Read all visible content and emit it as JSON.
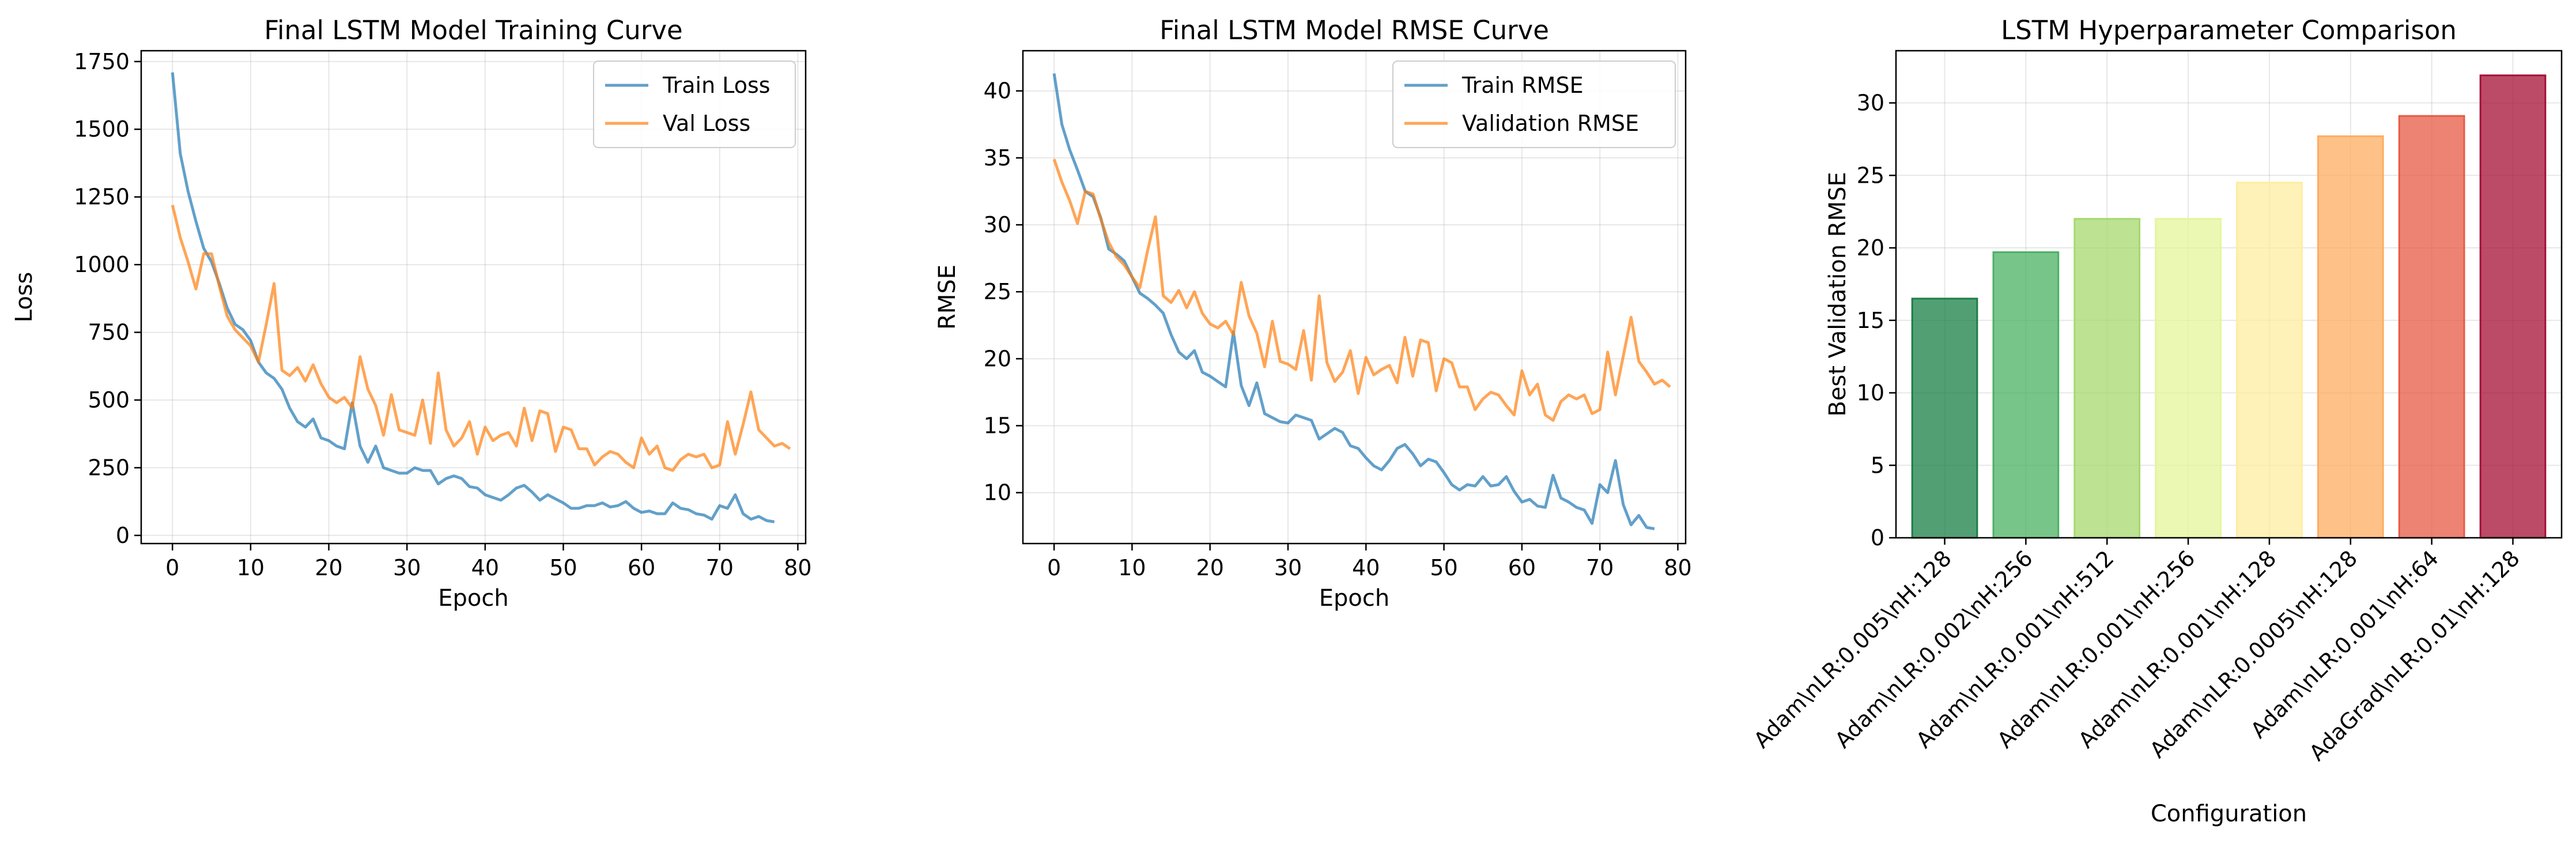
{
  "chart_data": [
    {
      "type": "line",
      "title": "Final LSTM Model Training Curve",
      "xlabel": "Epoch",
      "ylabel": "Loss",
      "xlim": [
        -4,
        81
      ],
      "ylim": [
        -30,
        1790
      ],
      "xticks": [
        0,
        10,
        20,
        30,
        40,
        50,
        60,
        70,
        80
      ],
      "yticks": [
        0,
        250,
        500,
        750,
        1000,
        1250,
        1500,
        1750
      ],
      "ytick_labels": [
        "0",
        "250",
        "500",
        "750",
        "1000",
        "1250",
        "1500",
        "1750"
      ],
      "grid": true,
      "legend": "top-right",
      "series": [
        {
          "name": "Train Loss",
          "color": "#1f77b4",
          "values": [
            1710,
            1410,
            1270,
            1160,
            1060,
            1010,
            930,
            840,
            780,
            760,
            720,
            640,
            600,
            580,
            540,
            470,
            420,
            400,
            430,
            360,
            350,
            330,
            320,
            490,
            330,
            270,
            330,
            250,
            240,
            230,
            230,
            250,
            240,
            240,
            190,
            210,
            220,
            210,
            180,
            175,
            150,
            140,
            130,
            150,
            175,
            185,
            160,
            130,
            150,
            135,
            120,
            100,
            100,
            110,
            110,
            120,
            105,
            110,
            125,
            100,
            85,
            90,
            80,
            80,
            120,
            100,
            95,
            80,
            75,
            60,
            110,
            100,
            150,
            80,
            60,
            70,
            55,
            50
          ]
        },
        {
          "name": "Val Loss",
          "color": "#ff7f0e",
          "values": [
            1220,
            1100,
            1010,
            910,
            1040,
            1040,
            920,
            810,
            760,
            730,
            700,
            640,
            780,
            930,
            610,
            590,
            620,
            570,
            630,
            560,
            510,
            490,
            510,
            470,
            660,
            540,
            480,
            370,
            520,
            390,
            380,
            370,
            500,
            340,
            600,
            390,
            330,
            360,
            420,
            300,
            400,
            350,
            370,
            380,
            330,
            470,
            350,
            460,
            450,
            310,
            400,
            390,
            320,
            320,
            260,
            290,
            310,
            300,
            270,
            250,
            360,
            300,
            330,
            250,
            240,
            280,
            300,
            290,
            300,
            250,
            260,
            420,
            300,
            410,
            530,
            390,
            360,
            330,
            340,
            320
          ]
        }
      ]
    },
    {
      "type": "line",
      "title": "Final LSTM Model RMSE Curve",
      "xlabel": "Epoch",
      "ylabel": "RMSE",
      "xlim": [
        -4,
        81
      ],
      "ylim": [
        6.2,
        43
      ],
      "xticks": [
        0,
        10,
        20,
        30,
        40,
        50,
        60,
        70,
        80
      ],
      "yticks": [
        10,
        15,
        20,
        25,
        30,
        35,
        40
      ],
      "ytick_labels": [
        "10",
        "15",
        "20",
        "25",
        "30",
        "35",
        "40"
      ],
      "grid": true,
      "legend": "top-right",
      "series": [
        {
          "name": "Train RMSE",
          "color": "#1f77b4",
          "values": [
            41.3,
            37.5,
            35.6,
            34.1,
            32.5,
            32.1,
            30.5,
            28.2,
            27.8,
            27.3,
            26.1,
            24.9,
            24.5,
            24.0,
            23.4,
            21.8,
            20.5,
            20.0,
            20.6,
            19.0,
            18.7,
            18.3,
            17.9,
            22.0,
            18.0,
            16.5,
            18.2,
            15.9,
            15.6,
            15.3,
            15.2,
            15.8,
            15.6,
            15.4,
            14.0,
            14.4,
            14.8,
            14.5,
            13.5,
            13.3,
            12.6,
            12.0,
            11.7,
            12.4,
            13.3,
            13.6,
            12.9,
            12.0,
            12.5,
            12.3,
            11.5,
            10.6,
            10.2,
            10.6,
            10.5,
            11.2,
            10.5,
            10.6,
            11.2,
            10.1,
            9.3,
            9.5,
            9.0,
            8.9,
            11.3,
            9.6,
            9.3,
            8.9,
            8.7,
            7.7,
            10.6,
            10.0,
            12.4,
            9.1,
            7.6,
            8.3,
            7.4,
            7.3
          ]
        },
        {
          "name": "Validation RMSE",
          "color": "#ff7f0e",
          "values": [
            34.9,
            33.2,
            31.8,
            30.1,
            32.5,
            32.3,
            30.4,
            28.7,
            27.6,
            27.0,
            26.1,
            25.3,
            28.1,
            30.6,
            24.7,
            24.2,
            25.1,
            23.8,
            25.0,
            23.4,
            22.6,
            22.3,
            22.8,
            21.8,
            25.7,
            23.2,
            21.9,
            19.4,
            22.8,
            19.8,
            19.6,
            19.2,
            22.1,
            18.4,
            24.7,
            19.7,
            18.3,
            19.0,
            20.6,
            17.4,
            20.1,
            18.8,
            19.2,
            19.5,
            18.2,
            21.6,
            18.7,
            21.4,
            21.2,
            17.6,
            20.0,
            19.7,
            17.9,
            17.9,
            16.2,
            17.0,
            17.5,
            17.3,
            16.5,
            15.8,
            19.1,
            17.3,
            18.1,
            15.8,
            15.4,
            16.8,
            17.3,
            17.0,
            17.3,
            15.9,
            16.2,
            20.5,
            17.3,
            20.2,
            23.1,
            19.8,
            19.0,
            18.1,
            18.4,
            17.9
          ]
        }
      ]
    },
    {
      "type": "bar",
      "title": "LSTM Hyperparameter Comparison",
      "xlabel": "Configuration",
      "ylabel": "Best Validation RMSE",
      "ylim": [
        0,
        33.6
      ],
      "yticks": [
        0,
        5,
        10,
        15,
        20,
        25,
        30
      ],
      "ytick_labels": [
        "0",
        "5",
        "10",
        "15",
        "20",
        "25",
        "30"
      ],
      "grid": true,
      "categories": [
        "Adam\\nLR:0.005\\nH:128",
        "Adam\\nLR:0.002\\nH:256",
        "Adam\\nLR:0.001\\nH:512",
        "Adam\\nLR:0.001\\nH:256",
        "Adam\\nLR:0.001\\nH:128",
        "Adam\\nLR:0.0005\\nH:128",
        "Adam\\nLR:0.001\\nH:64",
        "AdaGrad\\nLR:0.01\\nH:128"
      ],
      "values": [
        16.5,
        19.7,
        22.0,
        22.0,
        24.5,
        27.7,
        29.1,
        31.9
      ],
      "colors": [
        "#1a7f46",
        "#4bb163",
        "#a5d86e",
        "#e4f59b",
        "#feeda1",
        "#fdad61",
        "#e75a43",
        "#a50f35"
      ]
    }
  ]
}
